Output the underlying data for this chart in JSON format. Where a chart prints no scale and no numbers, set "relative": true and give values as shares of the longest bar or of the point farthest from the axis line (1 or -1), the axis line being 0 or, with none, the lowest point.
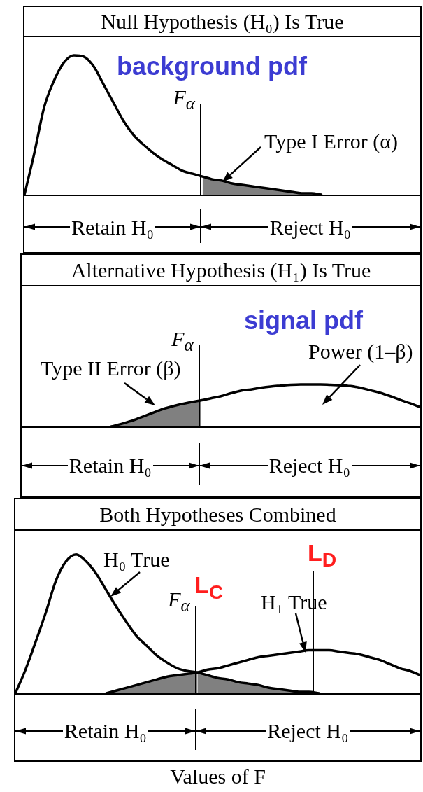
{
  "chart_data": [
    {
      "type": "line",
      "title": "Null Hypothesis (H₀) Is True",
      "categories": [
        null,
        null,
        null,
        null,
        null,
        null,
        null,
        null,
        null,
        null,
        null,
        null,
        null,
        null,
        null,
        null,
        null,
        null,
        null,
        null,
        null,
        null,
        null,
        null,
        null,
        null,
        null,
        null,
        null,
        null,
        null,
        null,
        null,
        null,
        null,
        null,
        null,
        null,
        null,
        null,
        null
      ],
      "relative": true,
      "series": [
        {
          "type": "line",
          "color": "#000000",
          "values": [
            0,
            0.3,
            0.63,
            0.82,
            0.95,
            1,
            0.99,
            0.92,
            0.79,
            0.66,
            0.53,
            0.43,
            0.36,
            0.3,
            0.25,
            0.21,
            0.17,
            0.15,
            0.13,
            0.11,
            0.1,
            0.08,
            0.07,
            0.06,
            0.05,
            0.04,
            0.03,
            0.02,
            0.01,
            0.01,
            0,
            null,
            null,
            null,
            null,
            null,
            null,
            null,
            null,
            null,
            null
          ]
        },
        {
          "type": "area",
          "name": "Type I Error (α)",
          "color": "#808080",
          "values": [
            null,
            null,
            null,
            null,
            null,
            null,
            null,
            null,
            null,
            null,
            null,
            null,
            null,
            null,
            null,
            null,
            null,
            null,
            0.13,
            0.11,
            0.1,
            0.08,
            0.07,
            0.06,
            0.05,
            0.04,
            0.03,
            0.02,
            0.01,
            0.01,
            0,
            null,
            null,
            null,
            null,
            null,
            null,
            null,
            null,
            null,
            null
          ]
        }
      ],
      "annotations": [
        "background pdf",
        "F$_{α}$",
        "Retain H₀",
        "Reject H₀"
      ]
    },
    {
      "type": "line",
      "title": "Alternative Hypothesis (H₁) Is True",
      "categories": [
        null,
        null,
        null,
        null,
        null,
        null,
        null,
        null,
        null,
        null,
        null,
        null,
        null,
        null,
        null,
        null,
        null,
        null,
        null,
        null,
        null,
        null,
        null,
        null,
        null,
        null,
        null,
        null,
        null,
        null,
        null,
        null,
        null,
        null,
        null,
        null,
        null,
        null,
        null,
        null,
        null
      ],
      "relative": true,
      "series": [
        {
          "type": "line",
          "color": "#000000",
          "values": [
            null,
            null,
            null,
            null,
            null,
            null,
            null,
            null,
            null,
            0,
            0.06,
            0.13,
            0.22,
            0.31,
            0.4,
            0.47,
            0.53,
            0.58,
            0.62,
            0.67,
            0.72,
            0.79,
            0.85,
            0.88,
            0.92,
            0.95,
            0.97,
            0.99,
            1,
            1,
            1,
            0.99,
            0.98,
            0.96,
            0.92,
            0.86,
            0.8,
            0.72,
            0.63,
            0.55,
            0.46
          ]
        },
        {
          "type": "area",
          "name": "Type II Error (β)",
          "color": "#808080",
          "values": [
            null,
            null,
            null,
            null,
            null,
            null,
            null,
            null,
            null,
            0,
            0.06,
            0.13,
            0.22,
            0.31,
            0.4,
            0.47,
            0.53,
            0.58,
            0.62,
            null,
            null,
            null,
            null,
            null,
            null,
            null,
            null,
            null,
            null,
            null,
            null,
            null,
            null,
            null,
            null,
            null,
            null,
            null,
            null,
            null,
            null
          ]
        }
      ],
      "annotations": [
        "signal pdf",
        "F$_{α}$",
        "Power (1–β)",
        "Retain H₀",
        "Reject H₀"
      ]
    },
    {
      "type": "line",
      "title": "Both Hypotheses Combined",
      "xlabel": "Values of F",
      "categories": [
        null,
        null,
        null,
        null,
        null,
        null,
        null,
        null,
        null,
        null,
        null,
        null,
        null,
        null,
        null,
        null,
        null,
        null,
        null,
        null,
        null,
        null,
        null,
        null,
        null,
        null,
        null,
        null,
        null,
        null,
        null,
        null,
        null,
        null,
        null,
        null,
        null,
        null,
        null,
        null,
        null
      ],
      "relative": true,
      "series": [
        {
          "type": "line",
          "name": "H₀ True",
          "color": "#000000",
          "values": [
            0,
            0.17,
            0.37,
            0.58,
            0.81,
            0.95,
            1,
            0.95,
            0.86,
            0.74,
            0.62,
            0.51,
            0.41,
            0.34,
            0.27,
            0.22,
            0.18,
            0.16,
            0.15,
            0.13,
            0.11,
            0.1,
            0.08,
            0.07,
            0.06,
            0.04,
            0.03,
            0.02,
            0.01,
            0.01,
            0,
            null,
            null,
            null,
            null,
            null,
            null,
            null,
            null,
            null,
            null
          ]
        },
        {
          "type": "line",
          "name": "H₁ True",
          "color": "#000000",
          "values": [
            null,
            null,
            null,
            null,
            null,
            null,
            null,
            null,
            null,
            0,
            0.02,
            0.04,
            0.06,
            0.08,
            0.1,
            0.12,
            0.13,
            0.14,
            0.15,
            0.17,
            0.18,
            0.2,
            0.22,
            0.24,
            0.26,
            0.27,
            0.28,
            0.29,
            0.3,
            0.31,
            0.31,
            0.31,
            0.3,
            0.29,
            0.28,
            0.26,
            0.24,
            0.21,
            0.18,
            0.16,
            0.13
          ]
        },
        {
          "type": "area",
          "color": "#808080",
          "values": [
            null,
            null,
            null,
            null,
            null,
            null,
            null,
            null,
            null,
            0,
            0.02,
            0.04,
            0.06,
            0.08,
            0.1,
            0.12,
            0.13,
            0.14,
            0.15,
            null,
            null,
            null,
            null,
            null,
            null,
            null,
            null,
            null,
            null,
            null,
            null,
            null,
            null,
            null,
            null,
            null,
            null,
            null,
            null,
            null,
            null
          ]
        },
        {
          "type": "area",
          "color": "#808080",
          "values": [
            null,
            null,
            null,
            null,
            null,
            null,
            null,
            null,
            null,
            null,
            null,
            null,
            null,
            null,
            null,
            null,
            null,
            null,
            0.15,
            0.13,
            0.11,
            0.1,
            0.08,
            0.07,
            0.06,
            0.04,
            0.03,
            0.02,
            0.01,
            0.01,
            0,
            null,
            null,
            null,
            null,
            null,
            null,
            null,
            null,
            null,
            null
          ]
        }
      ],
      "annotations": [
        "L$_{C}$",
        "F$_{α}$",
        "L$_{D}$",
        "Retain H₀",
        "Reject H₀"
      ]
    }
  ]
}
